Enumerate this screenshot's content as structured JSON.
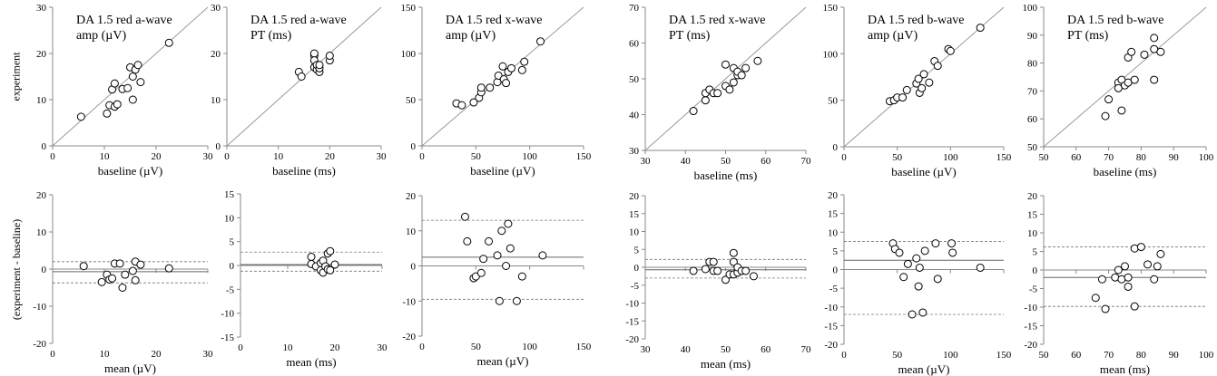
{
  "chart_data": [
    {
      "type": "scatter",
      "row": "top",
      "title_lines": [
        "DA 1.5 red a-wave",
        "amp (µV)"
      ],
      "xlabel": "baseline (µV)",
      "ylabel": "experiment",
      "xlim": [
        0,
        30
      ],
      "ylim": [
        0,
        30
      ],
      "xticks": [
        0,
        10,
        20,
        30
      ],
      "yticks": [
        0,
        10,
        20,
        30
      ],
      "identity_line": true,
      "points": [
        [
          5.5,
          6.3
        ],
        [
          10.5,
          7
        ],
        [
          11,
          8.8
        ],
        [
          11.5,
          12.2
        ],
        [
          12,
          13.5
        ],
        [
          12,
          8.5
        ],
        [
          12.5,
          9
        ],
        [
          13.5,
          12.3
        ],
        [
          14.5,
          12.5
        ],
        [
          15,
          17
        ],
        [
          15.5,
          15
        ],
        [
          15.5,
          10
        ],
        [
          16,
          16.5
        ],
        [
          16.5,
          17.5
        ],
        [
          17,
          13.8
        ],
        [
          22.5,
          22.3
        ]
      ]
    },
    {
      "type": "scatter",
      "row": "top",
      "title_lines": [
        "DA 1.5 red a-wave",
        "PT (ms)"
      ],
      "xlabel": "baseline (ms)",
      "ylabel": "",
      "xlim": [
        0,
        30
      ],
      "ylim": [
        0,
        30
      ],
      "xticks": [
        0,
        10,
        20,
        30
      ],
      "yticks": [
        0,
        10,
        20,
        30
      ],
      "identity_line": true,
      "points": [
        [
          14,
          16
        ],
        [
          14.5,
          15
        ],
        [
          17,
          17
        ],
        [
          17,
          19.5
        ],
        [
          17,
          20
        ],
        [
          17,
          18.5
        ],
        [
          17.5,
          16.5
        ],
        [
          17.5,
          17.5
        ],
        [
          18,
          16
        ],
        [
          18,
          16.8
        ],
        [
          18,
          17.5
        ],
        [
          20,
          18.5
        ],
        [
          20,
          19.5
        ]
      ]
    },
    {
      "type": "scatter",
      "row": "top",
      "title_lines": [
        "DA 1.5 red x-wave",
        "amp (µV)"
      ],
      "xlabel": "baseline (µV)",
      "ylabel": "",
      "xlim": [
        0,
        150
      ],
      "ylim": [
        0,
        150
      ],
      "xticks": [
        0,
        50,
        100,
        150
      ],
      "yticks": [
        0,
        50,
        100,
        150
      ],
      "identity_line": true,
      "points": [
        [
          32,
          46
        ],
        [
          37,
          44
        ],
        [
          48,
          47
        ],
        [
          53,
          52
        ],
        [
          55,
          58
        ],
        [
          55,
          63
        ],
        [
          63,
          63
        ],
        [
          70,
          69
        ],
        [
          71,
          76
        ],
        [
          76,
          72
        ],
        [
          75,
          86
        ],
        [
          78,
          68
        ],
        [
          80,
          80
        ],
        [
          83,
          84
        ],
        [
          93,
          82
        ],
        [
          95,
          91
        ],
        [
          110,
          113
        ]
      ]
    },
    {
      "type": "scatter",
      "row": "top",
      "title_lines": [
        "DA 1.5 red x-wave",
        "PT (ms)"
      ],
      "xlabel": "baseline (ms)",
      "ylabel": "",
      "xlim": [
        30,
        70
      ],
      "ylim": [
        30,
        70
      ],
      "xticks": [
        30,
        40,
        50,
        60,
        70
      ],
      "yticks": [
        30,
        40,
        50,
        60,
        70
      ],
      "identity_line": true,
      "points": [
        [
          42,
          41
        ],
        [
          45,
          44
        ],
        [
          45,
          46
        ],
        [
          46,
          47
        ],
        [
          47,
          46
        ],
        [
          48,
          46
        ],
        [
          50,
          48
        ],
        [
          50,
          54
        ],
        [
          51,
          47
        ],
        [
          52,
          49
        ],
        [
          52,
          53
        ],
        [
          53,
          51
        ],
        [
          53,
          52
        ],
        [
          54,
          51
        ],
        [
          55,
          53
        ],
        [
          58,
          55
        ]
      ]
    },
    {
      "type": "scatter",
      "row": "top",
      "title_lines": [
        "DA 1.5 red b-wave",
        "amp (µV)"
      ],
      "xlabel": "baseline (µV)",
      "ylabel": "",
      "xlim": [
        0,
        150
      ],
      "ylim": [
        0,
        150
      ],
      "xticks": [
        0,
        50,
        100,
        150
      ],
      "yticks": [
        0,
        50,
        100,
        150
      ],
      "identity_line": true,
      "points": [
        [
          43,
          49
        ],
        [
          47,
          50
        ],
        [
          50,
          53
        ],
        [
          55,
          53
        ],
        [
          59,
          61
        ],
        [
          68,
          68
        ],
        [
          70,
          73
        ],
        [
          71,
          58
        ],
        [
          73,
          63
        ],
        [
          75,
          78
        ],
        [
          80,
          69
        ],
        [
          85,
          92
        ],
        [
          88,
          87
        ],
        [
          98,
          105
        ],
        [
          100,
          103
        ],
        [
          128,
          128
        ]
      ]
    },
    {
      "type": "scatter",
      "row": "top",
      "title_lines": [
        "DA 1.5 red b-wave",
        "PT (ms)"
      ],
      "xlabel": "baseline (ms)",
      "ylabel": "",
      "xlim": [
        50,
        100
      ],
      "ylim": [
        50,
        100
      ],
      "xticks": [
        50,
        60,
        70,
        80,
        90,
        100
      ],
      "yticks": [
        50,
        60,
        70,
        80,
        90,
        100
      ],
      "identity_line": true,
      "points": [
        [
          69,
          61
        ],
        [
          70,
          67
        ],
        [
          73,
          73
        ],
        [
          73,
          71
        ],
        [
          74,
          63
        ],
        [
          74,
          74
        ],
        [
          75,
          72
        ],
        [
          76,
          73
        ],
        [
          76,
          82
        ],
        [
          77,
          84
        ],
        [
          78,
          74
        ],
        [
          81,
          83
        ],
        [
          84,
          74
        ],
        [
          84,
          89
        ],
        [
          84,
          85
        ],
        [
          86,
          84
        ]
      ]
    },
    {
      "type": "scatter",
      "row": "bottom",
      "xlabel": "mean (µV)",
      "ylabel": "(experiment - baseline)",
      "xlim": [
        0,
        30
      ],
      "ylim": [
        -20,
        20
      ],
      "xticks": [
        0,
        10,
        20,
        30
      ],
      "yticks": [
        -20,
        -10,
        0,
        10,
        20
      ],
      "mean_line": -0.7,
      "loa": [
        2.0,
        -3.7
      ],
      "points": [
        [
          6,
          0.8
        ],
        [
          9.5,
          -3.5
        ],
        [
          10.5,
          -1.5
        ],
        [
          11,
          -2.8
        ],
        [
          11.5,
          -2.5
        ],
        [
          12,
          1.5
        ],
        [
          13,
          1.5
        ],
        [
          13.5,
          -5
        ],
        [
          14,
          -1.5
        ],
        [
          15.5,
          -0.5
        ],
        [
          16,
          -3
        ],
        [
          16,
          2
        ],
        [
          17,
          1.2
        ],
        [
          22.5,
          0.2
        ]
      ]
    },
    {
      "type": "scatter",
      "row": "bottom",
      "xlabel": "mean (ms)",
      "ylabel": "",
      "xlim": [
        0,
        30
      ],
      "ylim": [
        -15,
        15
      ],
      "xticks": [
        0,
        10,
        20,
        30
      ],
      "yticks": [
        -15,
        -10,
        -5,
        0,
        5,
        10,
        15
      ],
      "mean_line": 0.2,
      "loa": [
        2.8,
        -1.2
      ],
      "points": [
        [
          15,
          1.8
        ],
        [
          15,
          0.3
        ],
        [
          16,
          -0.2
        ],
        [
          17,
          0.5
        ],
        [
          17,
          -1
        ],
        [
          17.5,
          -1.5
        ],
        [
          17.5,
          1
        ],
        [
          18,
          -0.2
        ],
        [
          18.5,
          -0.8
        ],
        [
          18.5,
          2.5
        ],
        [
          19,
          3
        ],
        [
          19,
          -1
        ],
        [
          20,
          0.2
        ]
      ]
    },
    {
      "type": "scatter",
      "row": "bottom",
      "xlabel": "mean (µV)",
      "ylabel": "",
      "xlim": [
        0,
        150
      ],
      "ylim": [
        -20,
        20
      ],
      "xticks": [
        0,
        50,
        100,
        150
      ],
      "yticks": [
        -20,
        -10,
        0,
        10,
        20
      ],
      "mean_line": 2.5,
      "loa": [
        13,
        -9.5
      ],
      "points": [
        [
          40,
          14
        ],
        [
          42,
          7
        ],
        [
          48,
          -3.5
        ],
        [
          50,
          -3
        ],
        [
          55,
          -2
        ],
        [
          57,
          2
        ],
        [
          62,
          7
        ],
        [
          70,
          3
        ],
        [
          72,
          -10
        ],
        [
          74,
          10
        ],
        [
          78,
          0
        ],
        [
          80,
          12
        ],
        [
          82,
          5
        ],
        [
          88,
          -10
        ],
        [
          93,
          -3
        ],
        [
          112,
          3
        ]
      ]
    },
    {
      "type": "scatter",
      "row": "bottom",
      "xlabel": "mean (ms)",
      "ylabel": "",
      "xlim": [
        30,
        70
      ],
      "ylim": [
        -20,
        20
      ],
      "xticks": [
        30,
        40,
        50,
        60,
        70
      ],
      "yticks": [
        -20,
        -15,
        -10,
        -5,
        0,
        5,
        10,
        15,
        20
      ],
      "mean_line": -0.7,
      "loa": [
        2.2,
        -3.0
      ],
      "points": [
        [
          42,
          -1
        ],
        [
          45,
          -0.5
        ],
        [
          46,
          1.5
        ],
        [
          47,
          1.5
        ],
        [
          47,
          -1
        ],
        [
          48,
          -1
        ],
        [
          50,
          -3.5
        ],
        [
          51,
          -2
        ],
        [
          52,
          -2
        ],
        [
          52,
          1.5
        ],
        [
          52,
          4
        ],
        [
          53,
          -1.5
        ],
        [
          53,
          0
        ],
        [
          54,
          -1
        ],
        [
          55,
          -1
        ],
        [
          57,
          -2.5
        ]
      ]
    },
    {
      "type": "scatter",
      "row": "bottom",
      "xlabel": "mean (µV)",
      "ylabel": "",
      "xlim": [
        0,
        150
      ],
      "ylim": [
        -20,
        20
      ],
      "xticks": [
        0,
        50,
        100,
        150
      ],
      "yticks": [
        -20,
        -15,
        -10,
        -5,
        0,
        5,
        10,
        15,
        20
      ],
      "mean_line": 2.5,
      "loa": [
        7.5,
        -12
      ],
      "points": [
        [
          46,
          7
        ],
        [
          48,
          5.5
        ],
        [
          52,
          4.5
        ],
        [
          56,
          -2
        ],
        [
          60,
          1.5
        ],
        [
          64,
          -12
        ],
        [
          68,
          3
        ],
        [
          70,
          -4.5
        ],
        [
          71,
          0.5
        ],
        [
          74,
          -11.5
        ],
        [
          76,
          5
        ],
        [
          86,
          7
        ],
        [
          88,
          -2.5
        ],
        [
          101,
          7
        ],
        [
          102,
          4.5
        ],
        [
          128,
          0.5
        ]
      ]
    },
    {
      "type": "scatter",
      "row": "bottom",
      "xlabel": "mean (ms)",
      "ylabel": "",
      "xlim": [
        50,
        100
      ],
      "ylim": [
        -20,
        20
      ],
      "xticks": [
        50,
        60,
        70,
        80,
        90,
        100
      ],
      "yticks": [
        -20,
        -15,
        -10,
        -5,
        0,
        5,
        10,
        15,
        20
      ],
      "mean_line": -2,
      "loa": [
        6.2,
        -9.8
      ],
      "points": [
        [
          66,
          -7.5
        ],
        [
          68,
          -2.5
        ],
        [
          69,
          -10.5
        ],
        [
          72,
          -2
        ],
        [
          73,
          0
        ],
        [
          74,
          -2.5
        ],
        [
          75,
          1
        ],
        [
          76,
          -4.5
        ],
        [
          76,
          -2
        ],
        [
          78,
          5.8
        ],
        [
          78,
          -9.8
        ],
        [
          80,
          6.2
        ],
        [
          82,
          1.5
        ],
        [
          84,
          -2.5
        ],
        [
          85,
          1
        ],
        [
          86,
          4.3
        ]
      ]
    }
  ]
}
